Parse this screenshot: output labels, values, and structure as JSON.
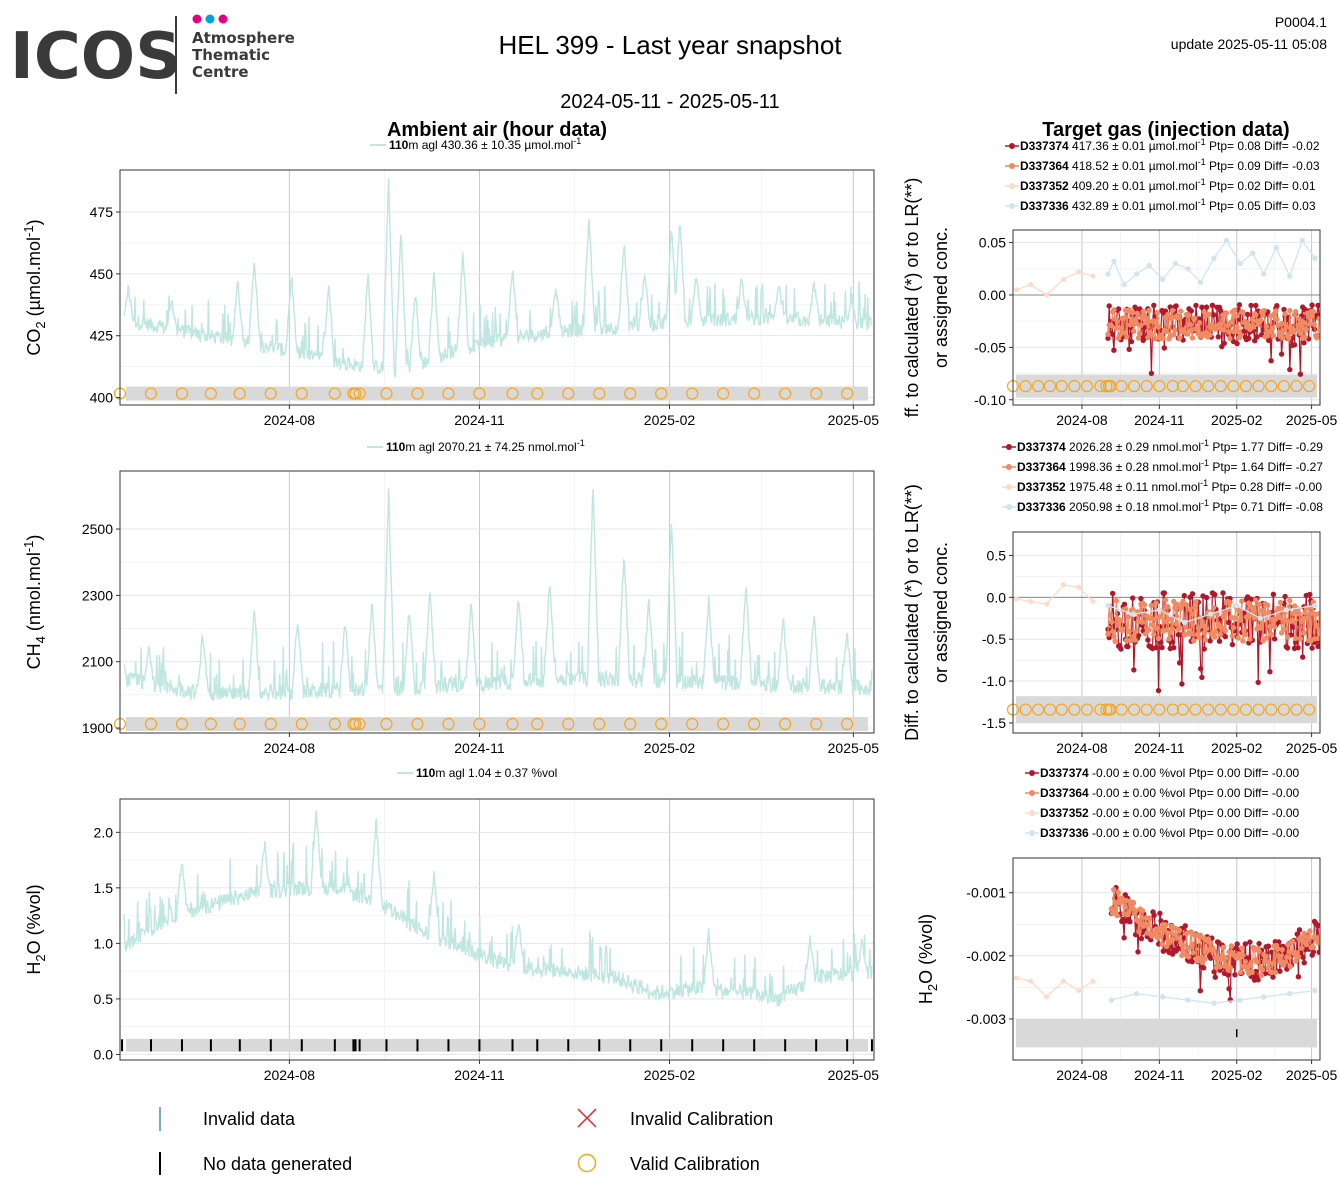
{
  "header": {
    "logo_text": "ICOS",
    "logo_sub_1": "Atmosphere",
    "logo_sub_2": "Thematic",
    "logo_sub_3": "Centre",
    "logo_dot_colors": [
      "#e6007e",
      "#009fe3",
      "#e6007e"
    ],
    "title": "HEL 399 - Last year snapshot",
    "date_range": "2024-05-11 - 2025-05-11",
    "product_id": "P0004.1",
    "update_label": "update  2025-05-11 05:08"
  },
  "sections": {
    "left_title": "Ambient air (hour data)",
    "right_title": "Target gas (injection data)"
  },
  "colors": {
    "ambient": "#bfe6e0",
    "cal_band": "#d9d9d9",
    "valid_cal": "#f5a623",
    "D337374": "#b2182b",
    "D337364": "#ef8a62",
    "D337352": "#fddbc7",
    "D337336": "#d1e5f0",
    "invalid_data": "#4a8fa8",
    "invalid_cal": "#e8222a"
  },
  "chart_data": [
    {
      "type": "line",
      "id": "co2_ambient",
      "ylabel": "CO2 (µmol.mol-1)",
      "ylim": [
        397,
        492
      ],
      "yticks": [
        400,
        425,
        450,
        475
      ],
      "xlim": [
        "2024-05-11",
        "2025-05-11"
      ],
      "xticks": [
        "2024-08",
        "2024-11",
        "2025-02",
        "2025-05"
      ],
      "legend": {
        "height": "110",
        "text": "m agl 430.36 ± 10.35 µmol.mol",
        "exp": "-1"
      },
      "baseline": [
        [
          "2024-05-11",
          432
        ],
        [
          "2024-06-15",
          426
        ],
        [
          "2024-07-20",
          421
        ],
        [
          "2024-08-25",
          414
        ],
        [
          "2024-09-25",
          411
        ],
        [
          "2024-10-20",
          419
        ],
        [
          "2024-11-15",
          424
        ],
        [
          "2024-12-15",
          427
        ],
        [
          "2025-01-15",
          429
        ],
        [
          "2025-02-15",
          431
        ],
        [
          "2025-03-15",
          432
        ],
        [
          "2025-04-15",
          431
        ],
        [
          "2025-05-11",
          430
        ]
      ],
      "spikes": [
        [
          "2024-05-15",
          446
        ],
        [
          "2024-06-05",
          441
        ],
        [
          "2024-07-07",
          449
        ],
        [
          "2024-07-15",
          458
        ],
        [
          "2024-08-02",
          452
        ],
        [
          "2024-08-20",
          447
        ],
        [
          "2024-09-08",
          452
        ],
        [
          "2024-09-18",
          490
        ],
        [
          "2024-09-24",
          470
        ],
        [
          "2024-10-01",
          445
        ],
        [
          "2024-10-10",
          452
        ],
        [
          "2024-10-24",
          461
        ],
        [
          "2024-11-17",
          454
        ],
        [
          "2024-12-08",
          446
        ],
        [
          "2024-12-24",
          476
        ],
        [
          "2025-01-10",
          465
        ],
        [
          "2025-01-20",
          452
        ],
        [
          "2025-02-02",
          470
        ],
        [
          "2025-02-06",
          474
        ],
        [
          "2025-02-14",
          452
        ],
        [
          "2025-03-08",
          450
        ],
        [
          "2025-03-26",
          447
        ],
        [
          "2025-04-12",
          448
        ],
        [
          "2025-04-30",
          441
        ]
      ],
      "valid_cal": [
        "2024-05-11",
        "2024-05-26",
        "2024-06-10",
        "2024-06-24",
        "2024-07-08",
        "2024-07-23",
        "2024-08-07",
        "2024-08-23",
        "2024-09-01",
        "2024-09-02",
        "2024-09-04",
        "2024-09-17",
        "2024-10-02",
        "2024-10-17",
        "2024-11-01",
        "2024-11-17",
        "2024-11-29",
        "2024-12-14",
        "2024-12-29",
        "2025-01-13",
        "2025-01-28",
        "2025-02-12",
        "2025-02-27",
        "2025-03-14",
        "2025-03-29",
        "2025-04-13",
        "2025-04-28"
      ]
    },
    {
      "type": "line",
      "id": "ch4_ambient",
      "ylabel": "CH4 (nmol.mol-1)",
      "ylim": [
        1885,
        2675
      ],
      "yticks": [
        1900,
        2100,
        2300,
        2500
      ],
      "xlim": [
        "2024-05-11",
        "2025-05-11"
      ],
      "xticks": [
        "2024-08",
        "2024-11",
        "2025-02",
        "2025-05"
      ],
      "legend": {
        "height": "110",
        "text": "m agl 2070.21 ± 74.25 nmol.mol",
        "exp": "-1"
      },
      "baseline": [
        [
          "2024-05-11",
          2050
        ],
        [
          "2024-06-15",
          2010
        ],
        [
          "2024-07-20",
          2005
        ],
        [
          "2024-08-25",
          2015
        ],
        [
          "2024-09-25",
          2020
        ],
        [
          "2024-10-20",
          2030
        ],
        [
          "2024-11-15",
          2040
        ],
        [
          "2024-12-15",
          2050
        ],
        [
          "2025-01-15",
          2045
        ],
        [
          "2025-02-15",
          2040
        ],
        [
          "2025-03-15",
          2035
        ],
        [
          "2025-04-15",
          2025
        ],
        [
          "2025-05-11",
          2020
        ]
      ],
      "spikes": [
        [
          "2024-05-25",
          2160
        ],
        [
          "2024-06-20",
          2200
        ],
        [
          "2024-07-15",
          2270
        ],
        [
          "2024-08-05",
          2250
        ],
        [
          "2024-08-28",
          2240
        ],
        [
          "2024-09-10",
          2300
        ],
        [
          "2024-09-18",
          2630
        ],
        [
          "2024-09-28",
          2280
        ],
        [
          "2024-10-08",
          2330
        ],
        [
          "2024-10-28",
          2300
        ],
        [
          "2024-11-20",
          2320
        ],
        [
          "2024-12-05",
          2360
        ],
        [
          "2024-12-26",
          2650
        ],
        [
          "2025-01-10",
          2450
        ],
        [
          "2025-01-22",
          2300
        ],
        [
          "2025-02-02",
          2550
        ],
        [
          "2025-02-20",
          2300
        ],
        [
          "2025-03-10",
          2350
        ],
        [
          "2025-03-28",
          2250
        ],
        [
          "2025-04-12",
          2260
        ],
        [
          "2025-04-28",
          2200
        ]
      ],
      "valid_cal": [
        "2024-05-11",
        "2024-05-26",
        "2024-06-10",
        "2024-06-24",
        "2024-07-08",
        "2024-07-23",
        "2024-08-07",
        "2024-08-23",
        "2024-09-01",
        "2024-09-02",
        "2024-09-04",
        "2024-09-17",
        "2024-10-02",
        "2024-10-17",
        "2024-11-01",
        "2024-11-17",
        "2024-11-29",
        "2024-12-14",
        "2024-12-29",
        "2025-01-13",
        "2025-01-28",
        "2025-02-12",
        "2025-02-27",
        "2025-03-14",
        "2025-03-29",
        "2025-04-13",
        "2025-04-28"
      ]
    },
    {
      "type": "line",
      "id": "h2o_ambient",
      "ylabel": "H2O (%vol)",
      "ylim": [
        -0.05,
        2.3
      ],
      "yticks": [
        0.0,
        0.5,
        1.0,
        1.5,
        2.0
      ],
      "ytick_labels": [
        "0.0",
        "0.5",
        "1.0",
        "1.5",
        "2.0"
      ],
      "xlim": [
        "2024-05-11",
        "2025-05-11"
      ],
      "xticks": [
        "2024-08",
        "2024-11",
        "2025-02",
        "2025-05"
      ],
      "legend": {
        "height": "110",
        "text": "m agl 1.04 ± 0.37 %vol",
        "exp": ""
      },
      "baseline": [
        [
          "2024-05-11",
          0.95
        ],
        [
          "2024-06-05",
          1.25
        ],
        [
          "2024-06-25",
          1.35
        ],
        [
          "2024-07-15",
          1.45
        ],
        [
          "2024-08-05",
          1.5
        ],
        [
          "2024-08-25",
          1.5
        ],
        [
          "2024-09-15",
          1.35
        ],
        [
          "2024-10-05",
          1.1
        ],
        [
          "2024-10-25",
          0.95
        ],
        [
          "2024-11-15",
          0.8
        ],
        [
          "2024-12-10",
          0.75
        ],
        [
          "2025-01-05",
          0.7
        ],
        [
          "2025-01-25",
          0.55
        ],
        [
          "2025-02-15",
          0.6
        ],
        [
          "2025-03-10",
          0.55
        ],
        [
          "2025-03-25",
          0.5
        ],
        [
          "2025-04-15",
          0.7
        ],
        [
          "2025-05-11",
          0.75
        ]
      ],
      "spikes": [
        [
          "2024-06-10",
          1.8
        ],
        [
          "2024-07-20",
          1.95
        ],
        [
          "2024-08-14",
          2.25
        ],
        [
          "2024-09-12",
          2.15
        ],
        [
          "2024-10-10",
          1.7
        ],
        [
          "2024-11-20",
          1.25
        ],
        [
          "2025-02-20",
          1.15
        ],
        [
          "2025-04-10",
          1.1
        ],
        [
          "2025-05-05",
          1.05
        ]
      ],
      "no_data": [
        "2024-05-12",
        "2024-05-26",
        "2024-06-10",
        "2024-06-24",
        "2024-07-08",
        "2024-07-23",
        "2024-08-07",
        "2024-08-23",
        "2024-09-01",
        "2024-09-02",
        "2024-09-04",
        "2024-09-17",
        "2024-10-02",
        "2024-10-17",
        "2024-11-01",
        "2024-11-17",
        "2024-11-29",
        "2024-12-14",
        "2024-12-29",
        "2025-01-13",
        "2025-01-28",
        "2025-02-12",
        "2025-02-27",
        "2025-03-14",
        "2025-03-29",
        "2025-04-13",
        "2025-04-28",
        "2025-05-10"
      ]
    },
    {
      "type": "scatter",
      "id": "co2_target",
      "ylabel_1": "ff. to calculated (*) or to LR(**)",
      "ylabel_2": "or assigned conc.",
      "ylim": [
        -0.105,
        0.062
      ],
      "yticks": [
        -0.1,
        -0.05,
        0.0,
        0.05
      ],
      "ytick_labels": [
        "-0.10",
        "-0.05",
        "0.00",
        "0.05"
      ],
      "xlim": [
        "2024-05-11",
        "2025-05-11"
      ],
      "xticks": [
        "2024-08",
        "2024-11",
        "2025-02",
        "2025-05"
      ],
      "legend": [
        {
          "name": "D337374",
          "text": "417.36 ± 0.01 µmol.mol",
          "exp": "-1",
          "ptp": "Ptp= 0.08 Diff= -0.02"
        },
        {
          "name": "D337364",
          "text": "418.52 ± 0.01 µmol.mol",
          "exp": "-1",
          "ptp": "Ptp= 0.09 Diff= -0.03"
        },
        {
          "name": "D337352",
          "text": "409.20 ± 0.01 µmol.mol",
          "exp": "-1",
          "ptp": "Ptp= 0.02 Diff= 0.01"
        },
        {
          "name": "D337336",
          "text": "432.89 ± 0.01 µmol.mol",
          "exp": "-1",
          "ptp": "Ptp= 0.05 Diff= 0.03"
        }
      ],
      "light_series": [
        [
          "2024-05-15",
          0.005
        ],
        [
          "2024-06-01",
          0.01
        ],
        [
          "2024-06-20",
          0.0
        ],
        [
          "2024-07-10",
          0.015
        ],
        [
          "2024-07-28",
          0.022
        ],
        [
          "2024-08-14",
          0.018
        ]
      ],
      "blue_series": [
        [
          "2024-09-01",
          0.02
        ],
        [
          "2024-09-08",
          0.032
        ],
        [
          "2024-09-20",
          0.01
        ],
        [
          "2024-10-05",
          0.02
        ],
        [
          "2024-10-20",
          0.028
        ],
        [
          "2024-11-05",
          0.015
        ],
        [
          "2024-11-20",
          0.03
        ],
        [
          "2024-12-05",
          0.025
        ],
        [
          "2024-12-20",
          0.012
        ],
        [
          "2025-01-05",
          0.035
        ],
        [
          "2025-01-20",
          0.052
        ],
        [
          "2025-02-05",
          0.03
        ],
        [
          "2025-02-20",
          0.04
        ],
        [
          "2025-03-05",
          0.02
        ],
        [
          "2025-03-20",
          0.045
        ],
        [
          "2025-04-05",
          0.018
        ],
        [
          "2025-04-20",
          0.052
        ],
        [
          "2025-05-05",
          0.035
        ]
      ],
      "dense_range": [
        "2024-09-01",
        "2025-05-10"
      ],
      "dense_center": -0.028,
      "dense_spread": 0.025,
      "cal_band": [
        -0.098,
        -0.076
      ],
      "valid_cal": [
        "2024-05-11",
        "2024-05-26",
        "2024-06-10",
        "2024-06-24",
        "2024-07-08",
        "2024-07-23",
        "2024-08-07",
        "2024-08-23",
        "2024-08-30",
        "2024-09-02",
        "2024-09-04",
        "2024-09-17",
        "2024-10-02",
        "2024-10-17",
        "2024-11-01",
        "2024-11-17",
        "2024-11-29",
        "2024-12-14",
        "2024-12-29",
        "2025-01-13",
        "2025-01-28",
        "2025-02-12",
        "2025-02-27",
        "2025-03-14",
        "2025-03-29",
        "2025-04-13",
        "2025-04-28"
      ]
    },
    {
      "type": "scatter",
      "id": "ch4_target",
      "ylabel_1": "Diff. to calculated (*) or to LR(**)",
      "ylabel_2": "or assigned conc.",
      "ylim": [
        -1.62,
        0.78
      ],
      "yticks": [
        -1.5,
        -1.0,
        -0.5,
        0.0,
        0.5
      ],
      "ytick_labels": [
        "-1.5",
        "-1.0",
        "-0.5",
        "0.0",
        "0.5"
      ],
      "xlim": [
        "2024-05-11",
        "2025-05-11"
      ],
      "xticks": [
        "2024-08",
        "2024-11",
        "2025-02",
        "2025-05"
      ],
      "legend": [
        {
          "name": "D337374",
          "text": "2026.28 ± 0.29 nmol.mol",
          "exp": "-1",
          "ptp": "Ptp= 1.77 Diff= -0.29"
        },
        {
          "name": "D337364",
          "text": "1998.36 ± 0.28 nmol.mol",
          "exp": "-1",
          "ptp": "Ptp= 1.64 Diff= -0.27"
        },
        {
          "name": "D337352",
          "text": "1975.48 ± 0.11 nmol.mol",
          "exp": "-1",
          "ptp": "Ptp= 0.28 Diff= -0.00"
        },
        {
          "name": "D337336",
          "text": "2050.98 ± 0.18 nmol.mol",
          "exp": "-1",
          "ptp": "Ptp= 0.71 Diff= -0.08"
        }
      ],
      "light_series": [
        [
          "2024-05-15",
          -0.02
        ],
        [
          "2024-06-01",
          -0.05
        ],
        [
          "2024-06-20",
          -0.08
        ],
        [
          "2024-07-10",
          0.15
        ],
        [
          "2024-07-28",
          0.12
        ],
        [
          "2024-08-14",
          -0.05
        ]
      ],
      "blue_series": [
        [
          "2024-09-01",
          -0.1
        ],
        [
          "2024-10-01",
          -0.2
        ],
        [
          "2024-11-01",
          -0.15
        ],
        [
          "2024-12-01",
          -0.3
        ],
        [
          "2025-01-01",
          -0.2
        ],
        [
          "2025-02-01",
          -0.1
        ],
        [
          "2025-03-01",
          -0.25
        ],
        [
          "2025-04-01",
          -0.15
        ],
        [
          "2025-05-05",
          -0.1
        ]
      ],
      "dense_range": [
        "2024-09-01",
        "2025-05-10"
      ],
      "dense_center": -0.28,
      "dense_spread": 0.45,
      "cal_band": [
        -1.5,
        -1.18
      ],
      "valid_cal": [
        "2024-05-11",
        "2024-05-26",
        "2024-06-10",
        "2024-06-24",
        "2024-07-08",
        "2024-07-23",
        "2024-08-07",
        "2024-08-23",
        "2024-08-30",
        "2024-09-02",
        "2024-09-04",
        "2024-09-17",
        "2024-10-02",
        "2024-10-17",
        "2024-11-01",
        "2024-11-17",
        "2024-11-29",
        "2024-12-14",
        "2024-12-29",
        "2025-01-13",
        "2025-01-28",
        "2025-02-12",
        "2025-02-27",
        "2025-03-14",
        "2025-03-29",
        "2025-04-13",
        "2025-04-28"
      ]
    },
    {
      "type": "scatter",
      "id": "h2o_target",
      "ylabel": "H2O (%vol)",
      "ylim": [
        -0.00365,
        -0.00045
      ],
      "yticks": [
        -0.003,
        -0.002,
        -0.001
      ],
      "ytick_labels": [
        "-0.003",
        "-0.002",
        "-0.001"
      ],
      "xlim": [
        "2024-05-11",
        "2025-05-11"
      ],
      "xticks": [
        "2024-08",
        "2024-11",
        "2025-02",
        "2025-05"
      ],
      "legend": [
        {
          "name": "D337374",
          "text": "-0.00 ± 0.00 %vol",
          "exp": "",
          "ptp": "Ptp= 0.00 Diff= -0.00"
        },
        {
          "name": "D337364",
          "text": "-0.00 ± 0.00 %vol",
          "exp": "",
          "ptp": "Ptp= 0.00 Diff= -0.00"
        },
        {
          "name": "D337352",
          "text": "-0.00 ± 0.00 %vol",
          "exp": "",
          "ptp": "Ptp= 0.00 Diff= -0.00"
        },
        {
          "name": "D337336",
          "text": "-0.00 ± 0.00 %vol",
          "exp": "",
          "ptp": "Ptp= 0.00 Diff= -0.00"
        }
      ],
      "light_series": [
        [
          "2024-05-15",
          -0.00235
        ],
        [
          "2024-06-01",
          -0.0024
        ],
        [
          "2024-06-20",
          -0.00265
        ],
        [
          "2024-07-10",
          -0.0024
        ],
        [
          "2024-07-28",
          -0.00255
        ],
        [
          "2024-08-14",
          -0.0024
        ]
      ],
      "blue_series": [
        [
          "2024-09-05",
          -0.0027
        ],
        [
          "2024-10-05",
          -0.0026
        ],
        [
          "2024-11-05",
          -0.00265
        ],
        [
          "2024-12-05",
          -0.0027
        ],
        [
          "2025-01-05",
          -0.00275
        ],
        [
          "2025-02-05",
          -0.0027
        ],
        [
          "2025-03-05",
          -0.00265
        ],
        [
          "2025-04-05",
          -0.0026
        ],
        [
          "2025-05-05",
          -0.00255
        ]
      ],
      "dense_trend": [
        [
          "2024-09-05",
          -0.0011
        ],
        [
          "2024-10-15",
          -0.0015
        ],
        [
          "2024-12-01",
          -0.0018
        ],
        [
          "2025-01-15",
          -0.002
        ],
        [
          "2025-03-01",
          -0.0021
        ],
        [
          "2025-04-01",
          -0.002
        ],
        [
          "2025-05-10",
          -0.0017
        ]
      ],
      "dense_spread": 0.0004,
      "cal_band": [
        -0.00345,
        -0.003
      ],
      "invalid_marks": [
        "2025-02-01"
      ]
    }
  ],
  "bottom_legend": {
    "invalid_data": "Invalid data",
    "no_data": "No data generated",
    "invalid_cal": "Invalid Calibration",
    "valid_cal": "Valid Calibration"
  }
}
